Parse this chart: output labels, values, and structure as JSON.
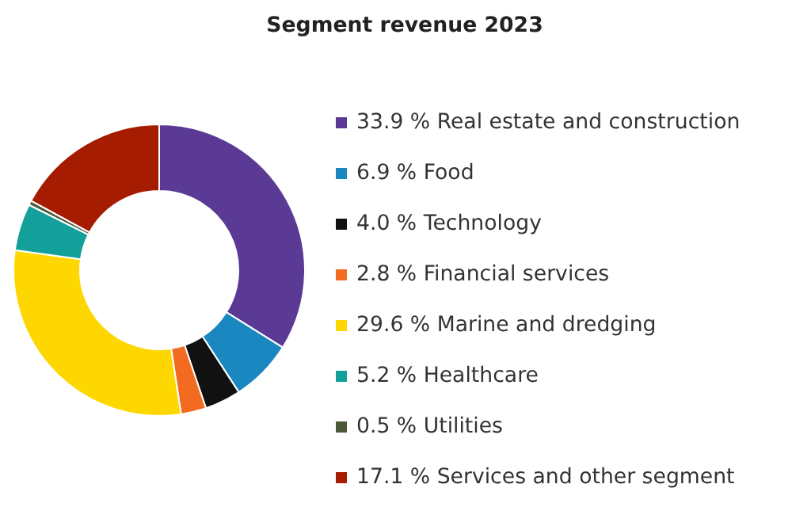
{
  "chart_data": {
    "type": "donut",
    "title": "Segment revenue 2023",
    "categories": [
      "Real estate and construction",
      "Food",
      "Technology",
      "Financial services",
      "Marine and dredging",
      "Healthcare",
      "Utilities",
      "Services and other segment"
    ],
    "values": [
      33.9,
      6.9,
      4.0,
      2.8,
      29.6,
      5.2,
      0.5,
      17.1
    ],
    "value_labels": [
      "33.9 %",
      "6.9 %",
      "4.0 %",
      "2.8 %",
      "29.6 %",
      "5.2 %",
      "0.5 %",
      "17.1 %"
    ],
    "colors": [
      "#5b3a96",
      "#1a87c0",
      "#111111",
      "#f26b21",
      "#ffd700",
      "#14a09a",
      "#4d5a3a",
      "#a51c00"
    ],
    "legend": "right"
  }
}
